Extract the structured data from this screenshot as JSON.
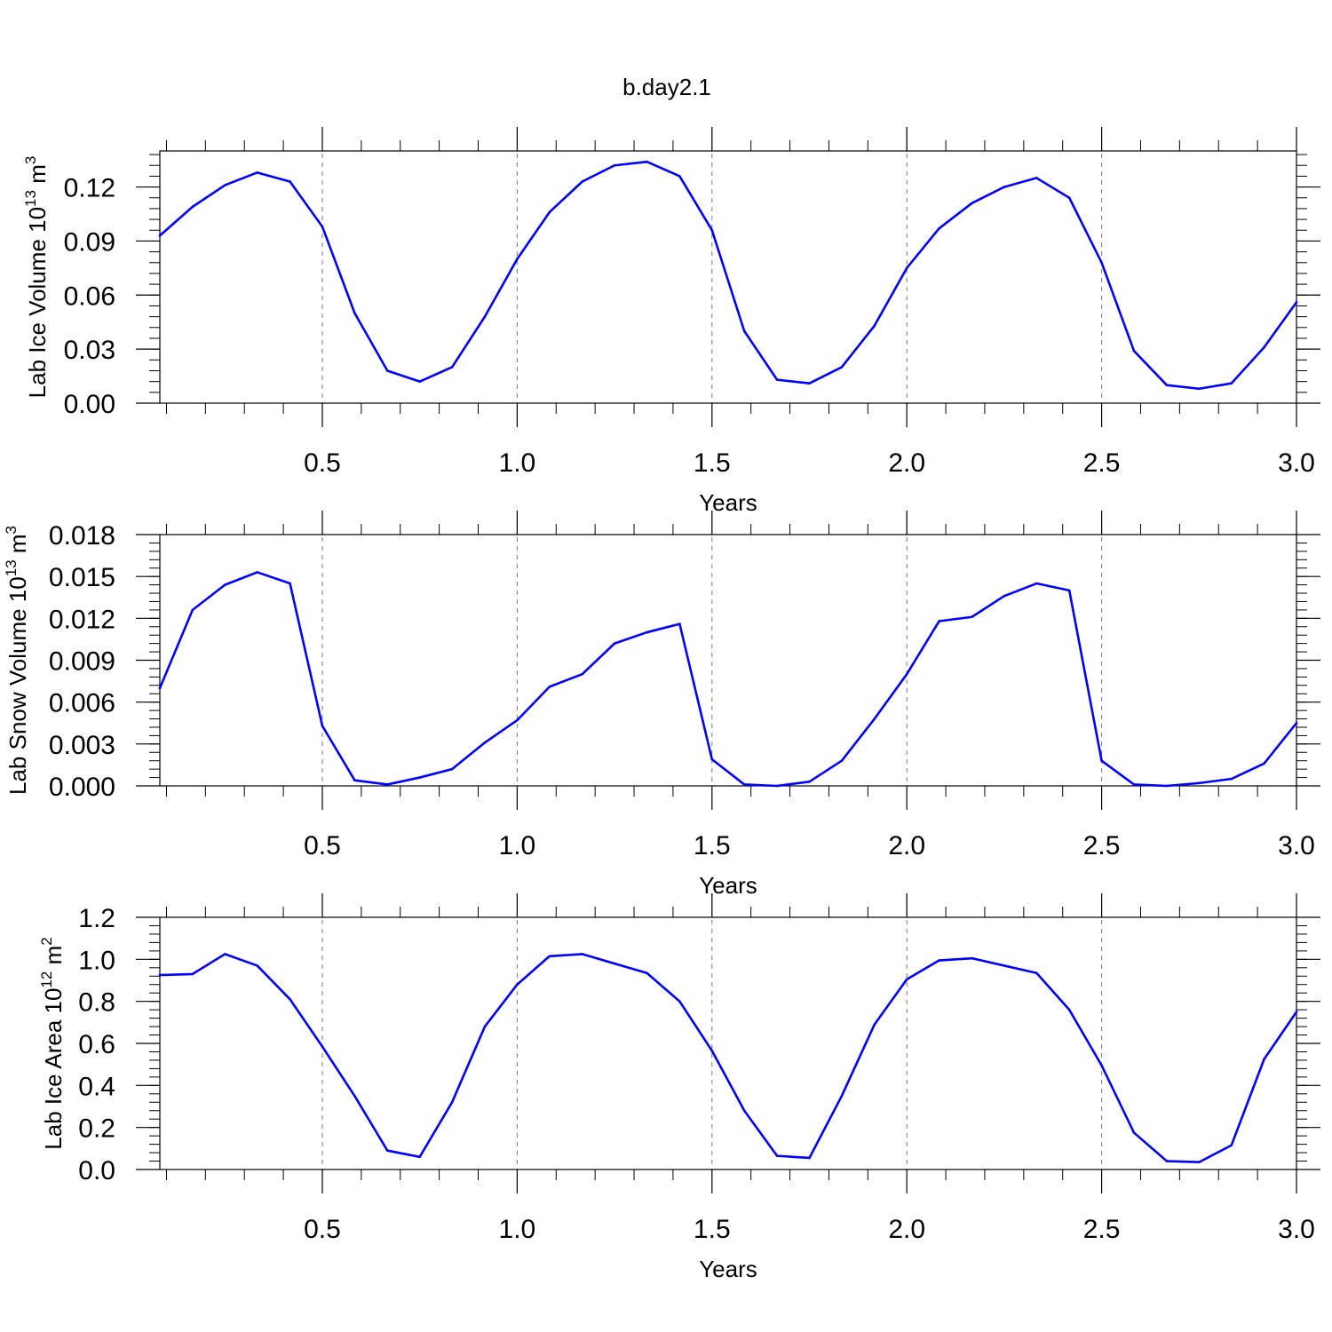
{
  "title": "b.day2.1",
  "colors": {
    "series": "#0000ff",
    "axis": "#000000",
    "vgrid": "#777777"
  },
  "chart_data": [
    {
      "type": "line",
      "ylabel": "Lab Ice Volume 10^13 m^3",
      "ylabel_main": "Lab Ice Volume 10",
      "ylabel_exp1": "13",
      "ylabel_unit": " m",
      "ylabel_exp2": "3",
      "xlabel": "Years",
      "xlim": [
        0.083,
        3.0
      ],
      "ylim": [
        0.0,
        0.14
      ],
      "xticks": [
        0.5,
        1.0,
        1.5,
        2.0,
        2.5,
        3.0
      ],
      "xtick_labels": [
        "0.5",
        "1.0",
        "1.5",
        "2.0",
        "2.5",
        "3.0"
      ],
      "yticks": [
        0.0,
        0.03,
        0.06,
        0.09,
        0.12
      ],
      "ytick_labels": [
        "0.00",
        "0.03",
        "0.06",
        "0.09",
        "0.12"
      ],
      "vgrid_at": [
        0.5,
        1.0,
        1.5,
        2.0,
        2.5
      ],
      "grid": "dashed vertical lines at major x ticks",
      "series": [
        {
          "x": [
            0.083,
            0.167,
            0.25,
            0.333,
            0.417,
            0.5,
            0.583,
            0.667,
            0.75,
            0.833,
            0.917,
            1.0,
            1.083,
            1.167,
            1.25,
            1.333,
            1.417,
            1.5,
            1.583,
            1.667,
            1.75,
            1.833,
            1.917,
            2.0,
            2.083,
            2.167,
            2.25,
            2.333,
            2.417,
            2.5,
            2.583,
            2.667,
            2.75,
            2.833,
            2.917,
            3.0
          ],
          "values": [
            0.093,
            0.109,
            0.121,
            0.128,
            0.123,
            0.098,
            0.05,
            0.018,
            0.012,
            0.02,
            0.048,
            0.08,
            0.106,
            0.123,
            0.132,
            0.134,
            0.126,
            0.096,
            0.04,
            0.013,
            0.011,
            0.02,
            0.043,
            0.075,
            0.097,
            0.111,
            0.12,
            0.125,
            0.114,
            0.078,
            0.029,
            0.01,
            0.008,
            0.011,
            0.031,
            0.056
          ]
        }
      ]
    },
    {
      "type": "line",
      "ylabel": "Lab Snow Volume 10^13 m^3",
      "ylabel_main": "Lab Snow Volume 10",
      "ylabel_exp1": "13",
      "ylabel_unit": " m",
      "ylabel_exp2": "3",
      "xlabel": "Years",
      "xlim": [
        0.083,
        3.0
      ],
      "ylim": [
        0.0,
        0.018
      ],
      "xticks": [
        0.5,
        1.0,
        1.5,
        2.0,
        2.5,
        3.0
      ],
      "xtick_labels": [
        "0.5",
        "1.0",
        "1.5",
        "2.0",
        "2.5",
        "3.0"
      ],
      "yticks": [
        0.0,
        0.003,
        0.006,
        0.009,
        0.012,
        0.015,
        0.018
      ],
      "ytick_labels": [
        "0.000",
        "0.003",
        "0.006",
        "0.009",
        "0.012",
        "0.015",
        "0.018"
      ],
      "vgrid_at": [
        0.5,
        1.0,
        1.5,
        2.0,
        2.5
      ],
      "grid": "dashed vertical lines at major x ticks",
      "series": [
        {
          "x": [
            0.083,
            0.167,
            0.25,
            0.333,
            0.417,
            0.5,
            0.583,
            0.667,
            0.75,
            0.833,
            0.917,
            1.0,
            1.083,
            1.167,
            1.25,
            1.333,
            1.417,
            1.5,
            1.583,
            1.667,
            1.75,
            1.833,
            1.917,
            2.0,
            2.083,
            2.167,
            2.25,
            2.333,
            2.417,
            2.5,
            2.583,
            2.667,
            2.75,
            2.833,
            2.917,
            3.0
          ],
          "values": [
            0.007,
            0.0126,
            0.0144,
            0.0153,
            0.0145,
            0.0043,
            0.0004,
            0.0001,
            0.0006,
            0.0012,
            0.0031,
            0.0047,
            0.0071,
            0.008,
            0.0102,
            0.011,
            0.0116,
            0.0019,
            0.0001,
            0.0,
            0.0003,
            0.0018,
            0.0048,
            0.008,
            0.0118,
            0.0121,
            0.0136,
            0.0145,
            0.014,
            0.0018,
            0.0001,
            0.0,
            0.0002,
            0.0005,
            0.0016,
            0.0045
          ]
        }
      ]
    },
    {
      "type": "line",
      "ylabel": "Lab Ice Area 10^12 m^2",
      "ylabel_main": "Lab Ice Area 10",
      "ylabel_exp1": "12",
      "ylabel_unit": " m",
      "ylabel_exp2": "2",
      "xlabel": "Years",
      "xlim": [
        0.083,
        3.0
      ],
      "ylim": [
        0.0,
        1.2
      ],
      "xticks": [
        0.5,
        1.0,
        1.5,
        2.0,
        2.5,
        3.0
      ],
      "xtick_labels": [
        "0.5",
        "1.0",
        "1.5",
        "2.0",
        "2.5",
        "3.0"
      ],
      "yticks": [
        0.0,
        0.2,
        0.4,
        0.6,
        0.8,
        1.0,
        1.2
      ],
      "ytick_labels": [
        "0.0",
        "0.2",
        "0.4",
        "0.6",
        "0.8",
        "1.0",
        "1.2"
      ],
      "vgrid_at": [
        0.5,
        1.0,
        1.5,
        2.0,
        2.5
      ],
      "grid": "dashed vertical lines at major x ticks",
      "series": [
        {
          "x": [
            0.083,
            0.167,
            0.25,
            0.333,
            0.417,
            0.5,
            0.583,
            0.667,
            0.75,
            0.833,
            0.917,
            1.0,
            1.083,
            1.167,
            1.25,
            1.333,
            1.417,
            1.5,
            1.583,
            1.667,
            1.75,
            1.833,
            1.917,
            2.0,
            2.083,
            2.167,
            2.25,
            2.333,
            2.417,
            2.5,
            2.583,
            2.667,
            2.75,
            2.833,
            2.917,
            3.0
          ],
          "values": [
            0.925,
            0.93,
            1.025,
            0.97,
            0.81,
            0.585,
            0.35,
            0.09,
            0.06,
            0.32,
            0.68,
            0.88,
            1.015,
            1.025,
            0.98,
            0.935,
            0.8,
            0.565,
            0.28,
            0.065,
            0.055,
            0.35,
            0.69,
            0.905,
            0.995,
            1.005,
            0.97,
            0.935,
            0.76,
            0.495,
            0.175,
            0.04,
            0.035,
            0.115,
            0.525,
            0.75
          ]
        }
      ]
    }
  ]
}
